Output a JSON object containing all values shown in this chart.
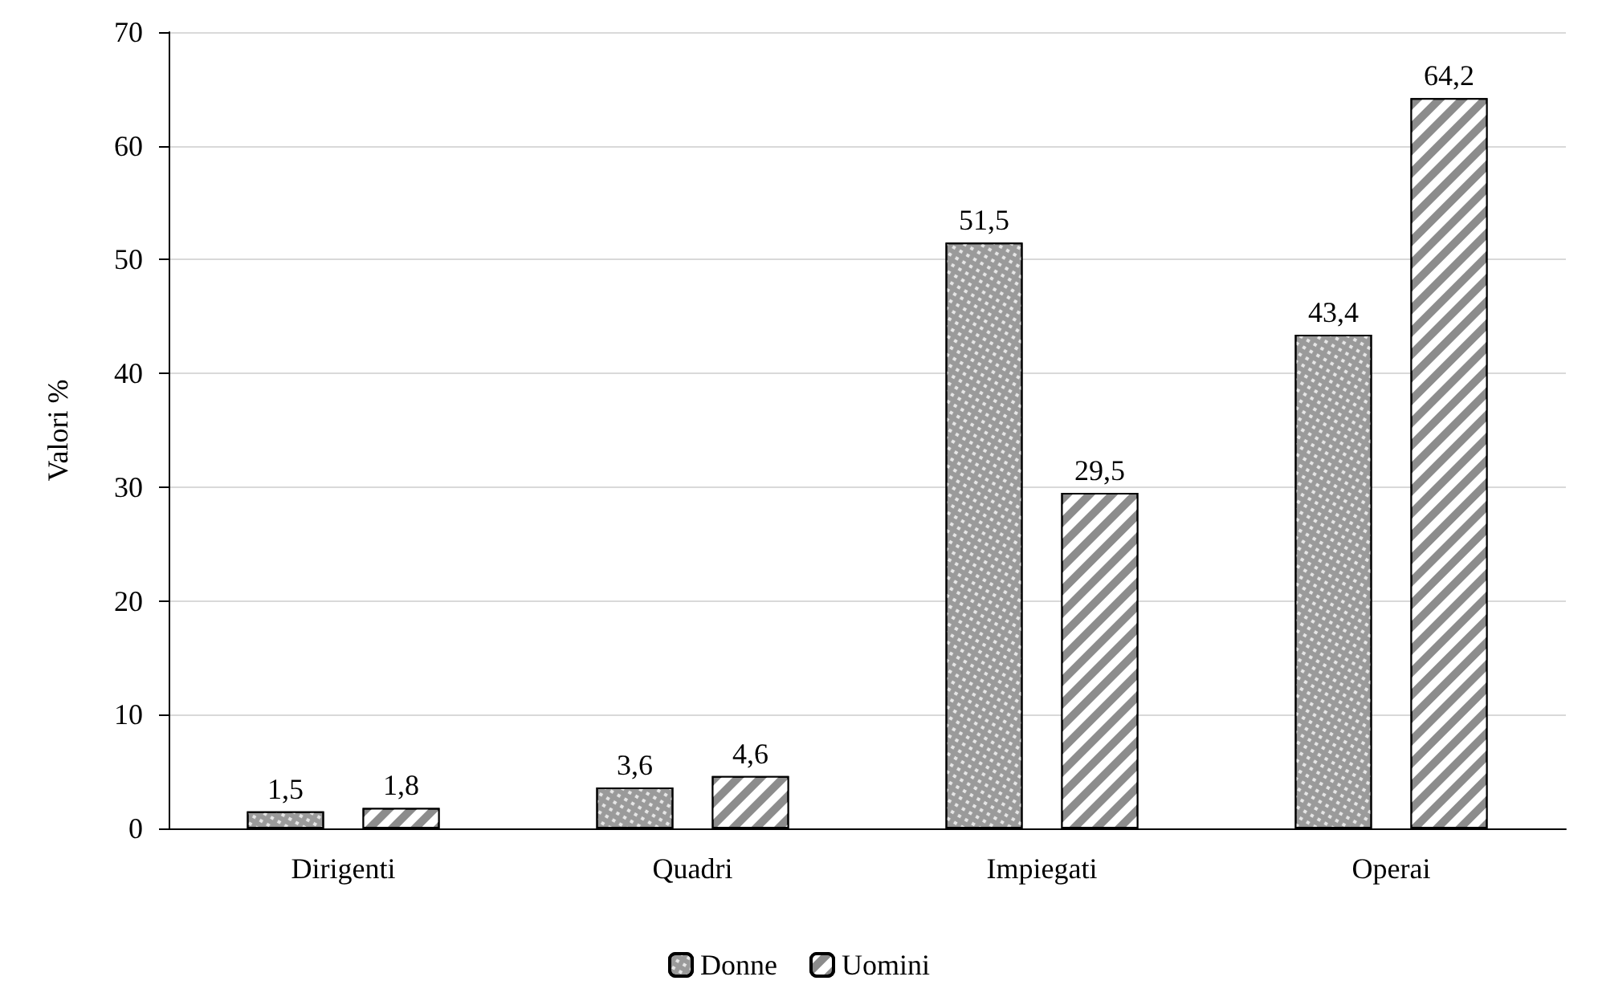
{
  "chart_data": {
    "type": "bar",
    "ylabel": "Valori %",
    "categories": [
      "Dirigenti",
      "Quadri",
      "Impiegati",
      "Operai"
    ],
    "series": [
      {
        "name": "Donne",
        "color": "#9a9a9a",
        "values": [
          1.5,
          3.6,
          51.5,
          43.4
        ],
        "value_labels": [
          "1,5",
          "3,6",
          "51,5",
          "43,4"
        ]
      },
      {
        "name": "Uomini",
        "color": "#8c8c8c",
        "values": [
          1.8,
          4.6,
          29.5,
          64.2
        ],
        "value_labels": [
          "1,8",
          "4,6",
          "29,5",
          "64,2"
        ]
      }
    ],
    "ylim": [
      0,
      70
    ],
    "yticks": [
      0,
      10,
      20,
      30,
      40,
      50,
      60,
      70
    ],
    "grid": "y",
    "legend": "bottom"
  }
}
